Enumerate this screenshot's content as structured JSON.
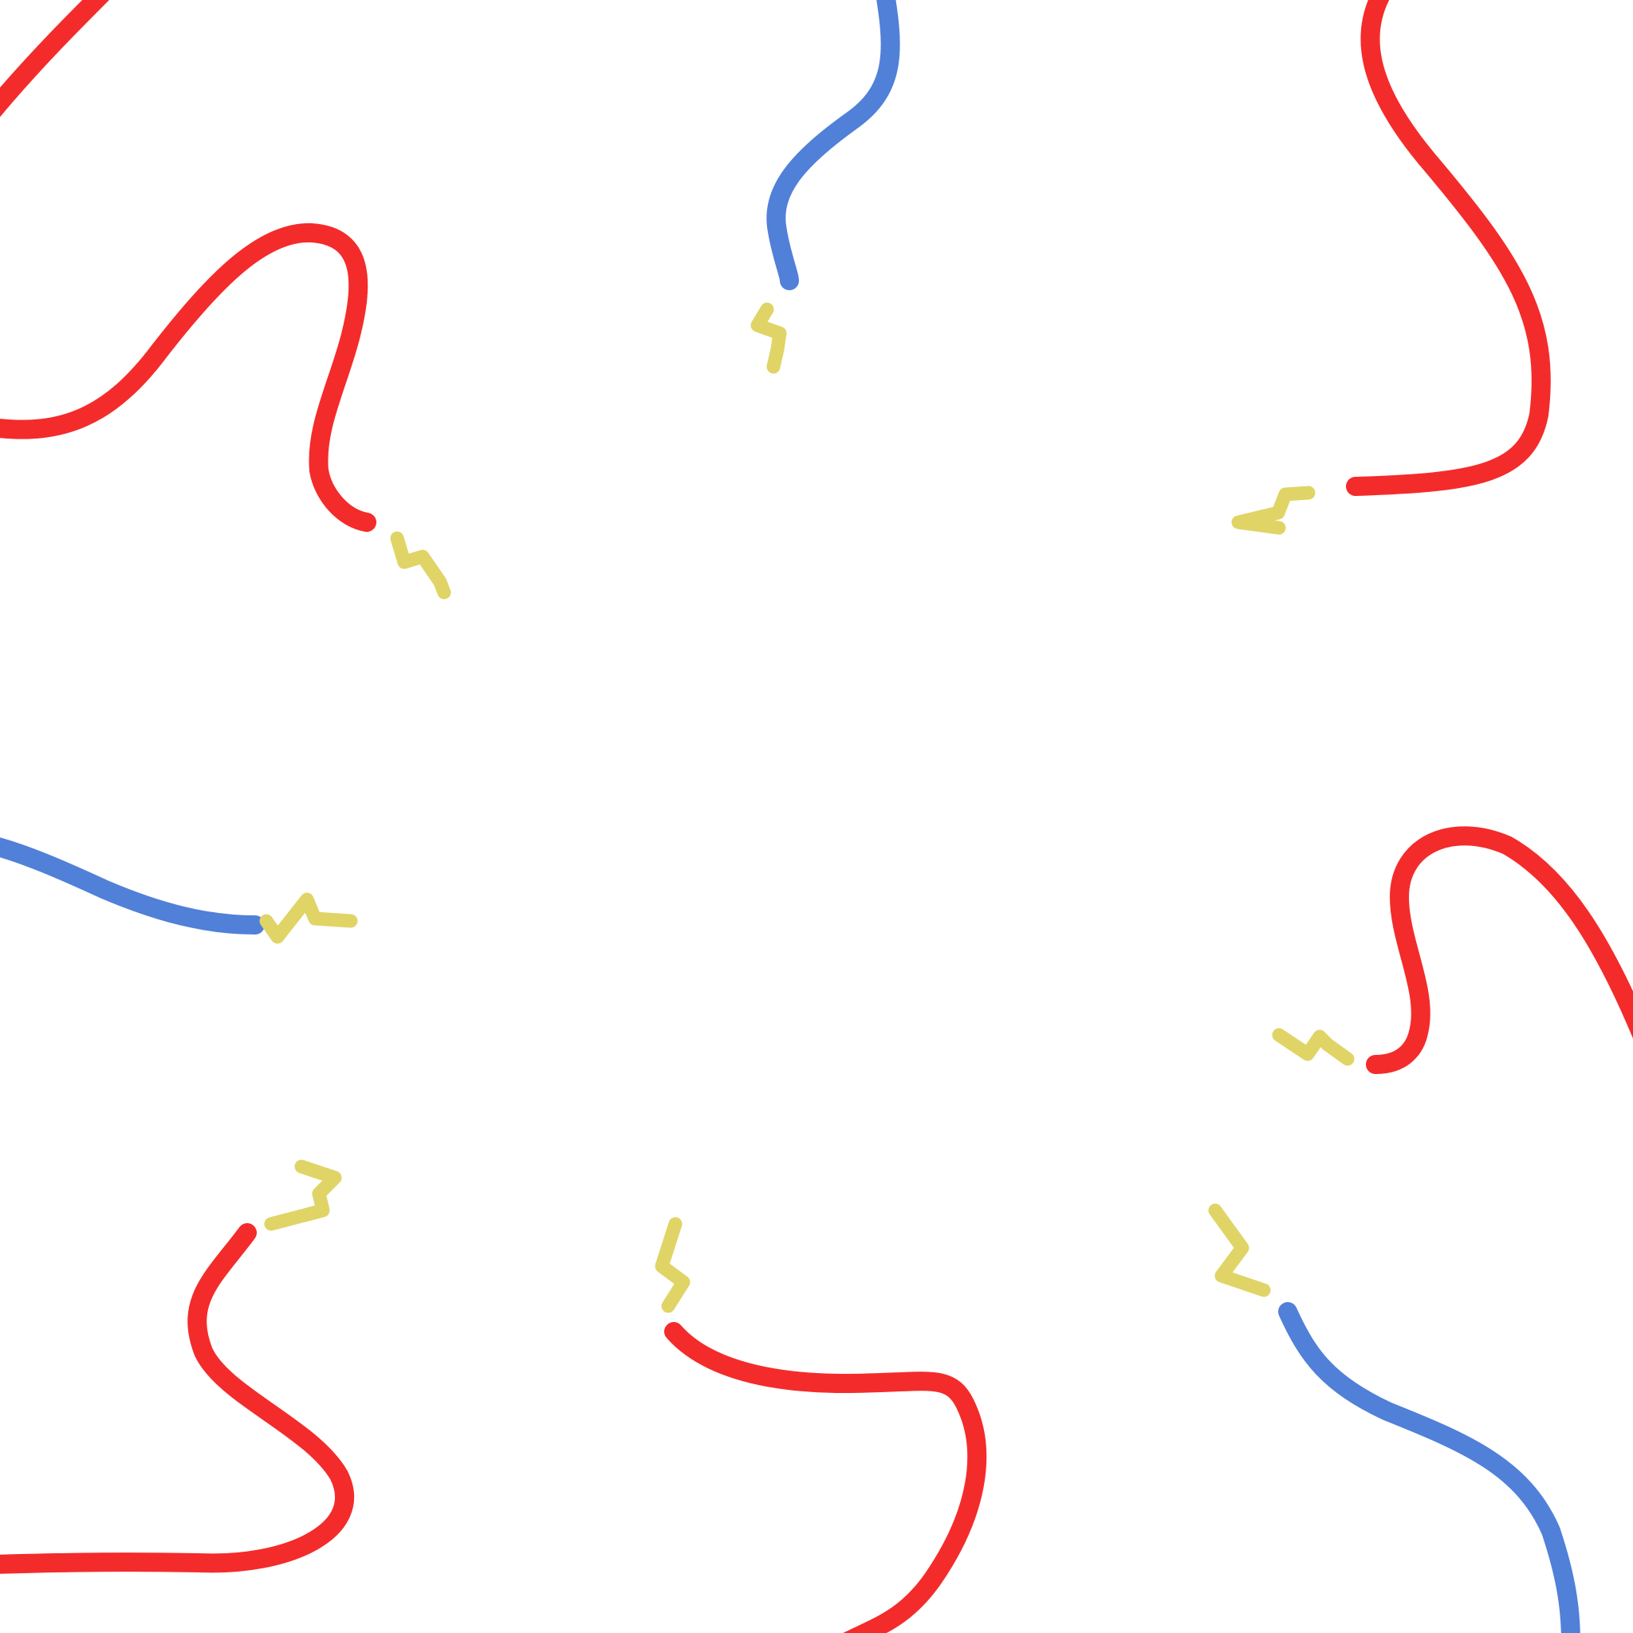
{
  "scene": {
    "background_color": "#ffffff",
    "wire_colors": {
      "red": "#f42b2b",
      "blue": "#5080d8"
    },
    "spark_color": "#e0d466",
    "wires": [
      {
        "id": "top-left-corner",
        "color": "red"
      },
      {
        "id": "top-left-hook",
        "color": "red"
      },
      {
        "id": "top-center",
        "color": "blue"
      },
      {
        "id": "top-right",
        "color": "red"
      },
      {
        "id": "left-middle",
        "color": "blue"
      },
      {
        "id": "right-middle",
        "color": "red"
      },
      {
        "id": "bottom-left",
        "color": "red"
      },
      {
        "id": "bottom-center",
        "color": "red"
      },
      {
        "id": "bottom-right",
        "color": "blue"
      }
    ],
    "spark_count": 8
  }
}
